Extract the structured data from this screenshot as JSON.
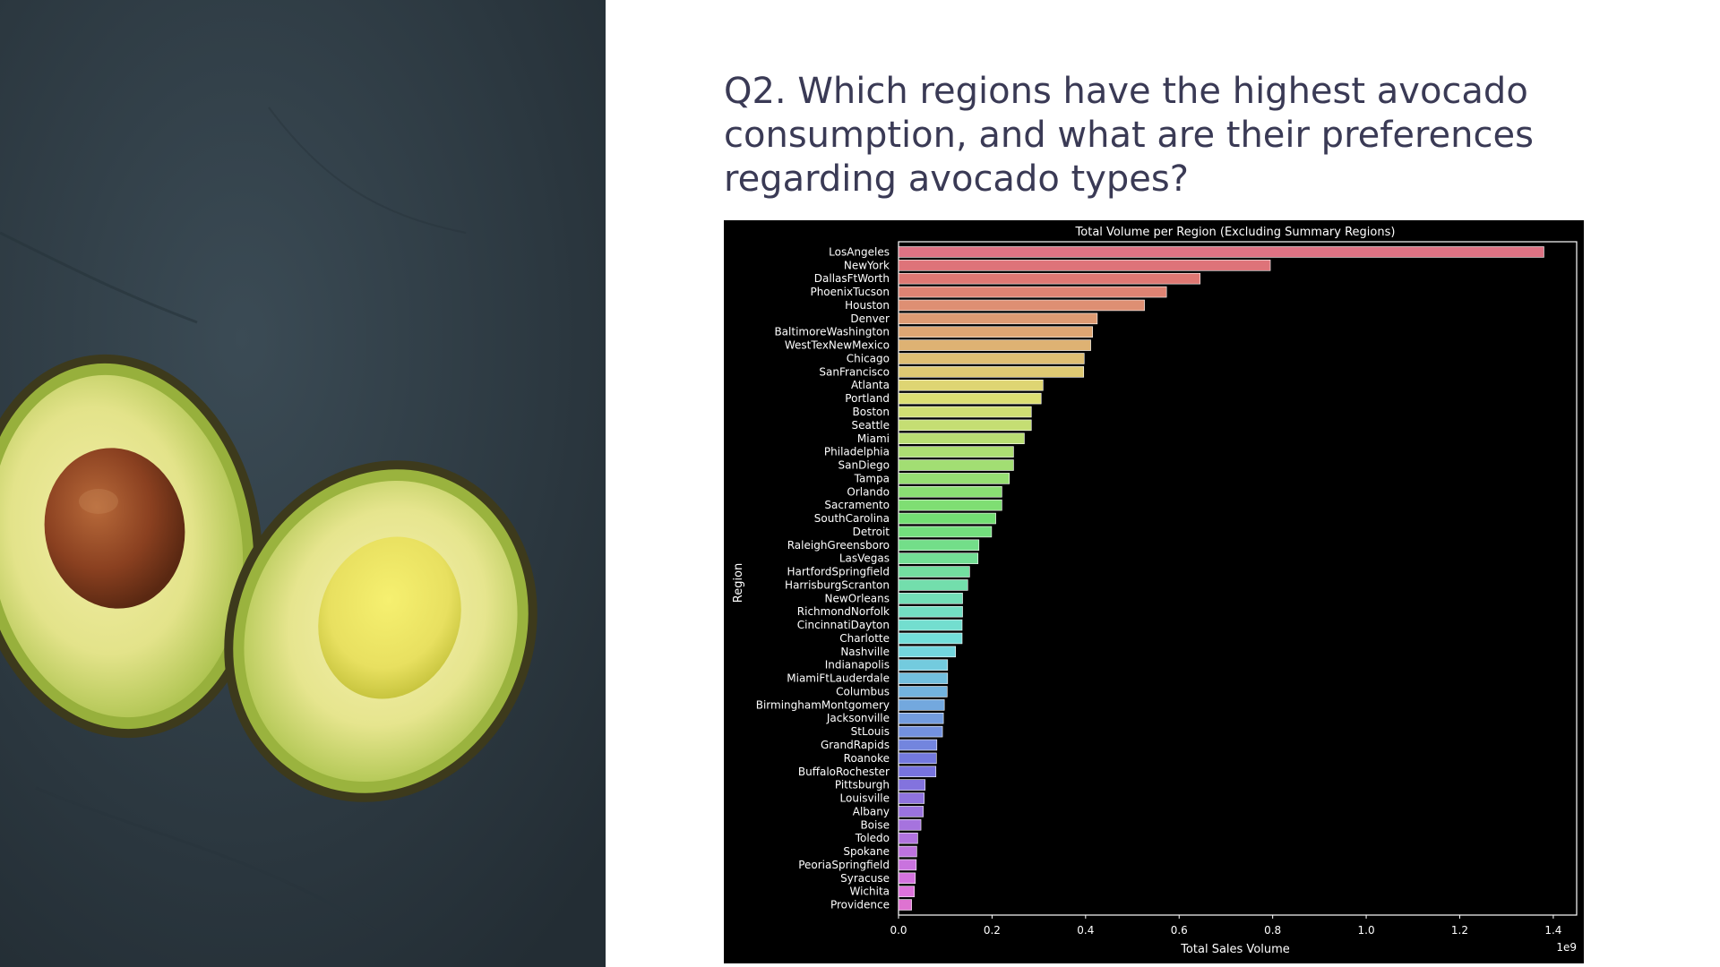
{
  "slide": {
    "title": "Q2. Which regions have the highest avocado consumption, and what are their preferences regarding avocado types?"
  },
  "photo": {
    "icon": "avocado-halves-photo",
    "background": "#2f3d46",
    "flesh_color": "#d6dc70",
    "pit_color": "#8a4020"
  },
  "chart_data": {
    "type": "bar",
    "orientation": "horizontal",
    "title": "Total Volume per Region (Excluding Summary Regions)",
    "xlabel": "Total Sales Volume",
    "ylabel": "Region",
    "x_scale_label": "1e9",
    "xlim": [
      0,
      1.45
    ],
    "xticks": [
      0.0,
      0.2,
      0.4,
      0.6,
      0.8,
      1.0,
      1.2,
      1.4
    ],
    "xtick_labels": [
      "0.0",
      "0.2",
      "0.4",
      "0.6",
      "0.8",
      "1.0",
      "1.2",
      "1.4"
    ],
    "categories": [
      "LosAngeles",
      "NewYork",
      "DallasFtWorth",
      "PhoenixTucson",
      "Houston",
      "Denver",
      "BaltimoreWashington",
      "WestTexNewMexico",
      "Chicago",
      "SanFrancisco",
      "Atlanta",
      "Portland",
      "Boston",
      "Seattle",
      "Miami",
      "Philadelphia",
      "SanDiego",
      "Tampa",
      "Orlando",
      "Sacramento",
      "SouthCarolina",
      "Detroit",
      "RaleighGreensboro",
      "LasVegas",
      "HartfordSpringfield",
      "HarrisburgScranton",
      "NewOrleans",
      "RichmondNorfolk",
      "CincinnatiDayton",
      "Charlotte",
      "Nashville",
      "Indianapolis",
      "MiamiFtLauderdale",
      "Columbus",
      "BirminghamMontgomery",
      "Jacksonville",
      "StLouis",
      "GrandRapids",
      "Roanoke",
      "BuffaloRochester",
      "Pittsburgh",
      "Louisville",
      "Albany",
      "Boise",
      "Toledo",
      "Spokane",
      "PeoriaSpringfield",
      "Syracuse",
      "Wichita",
      "Providence"
    ],
    "values": [
      1.38,
      0.795,
      0.645,
      0.573,
      0.526,
      0.425,
      0.415,
      0.411,
      0.397,
      0.396,
      0.309,
      0.305,
      0.284,
      0.284,
      0.269,
      0.246,
      0.246,
      0.237,
      0.221,
      0.221,
      0.208,
      0.199,
      0.172,
      0.17,
      0.152,
      0.148,
      0.137,
      0.137,
      0.136,
      0.136,
      0.122,
      0.105,
      0.105,
      0.104,
      0.098,
      0.096,
      0.094,
      0.082,
      0.081,
      0.08,
      0.057,
      0.055,
      0.053,
      0.048,
      0.041,
      0.039,
      0.038,
      0.036,
      0.034,
      0.028
    ]
  }
}
